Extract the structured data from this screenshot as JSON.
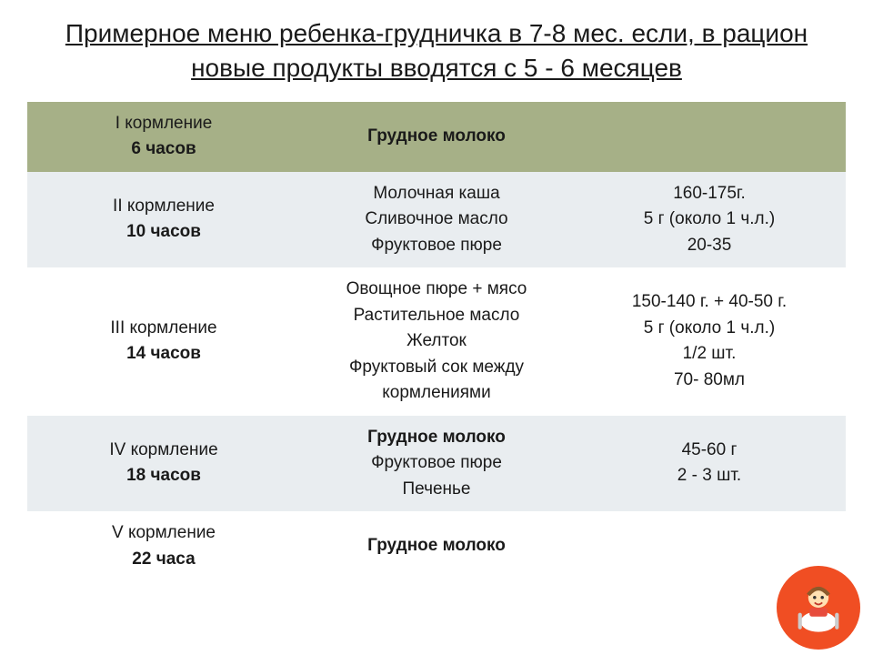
{
  "title": "Примерное меню ребенка-грудничка в 7-8 мес. если, в рацион   новые продукты вводятся с 5 - 6 месяцев",
  "columns": {
    "time_width": 300,
    "food_width": 300,
    "qty_width": 300
  },
  "colors": {
    "header_bg": "#a6b087",
    "alt_bg": "#e9edf0",
    "plain_bg": "#ffffff",
    "text": "#1a1a1a",
    "badge_bg": "#f04e23"
  },
  "rows": [
    {
      "style": "hdr",
      "time_main": "I кормление",
      "time_sub": "6 часов",
      "food": [
        "Грудное молоко"
      ],
      "food_bold": [
        true
      ],
      "qty": []
    },
    {
      "style": "alt",
      "time_main": "II кормление",
      "time_sub": "10 часов",
      "food": [
        "Молочная каша",
        "Сливочное масло",
        "Фруктовое пюре"
      ],
      "food_bold": [
        false,
        false,
        false
      ],
      "qty": [
        "160-175г.",
        "5 г (около 1 ч.л.)",
        "20-35"
      ]
    },
    {
      "style": "plain",
      "time_main": "III кормление",
      "time_sub": "14 часов",
      "food": [
        "Овощное пюре + мясо",
        "Растительное масло",
        "Желток",
        "Фруктовый сок между кормлениями"
      ],
      "food_bold": [
        false,
        false,
        false,
        false
      ],
      "qty": [
        "150-140 г. + 40-50 г.",
        "5 г (около 1 ч.л.)",
        "1/2 шт.",
        "70- 80мл"
      ]
    },
    {
      "style": "alt",
      "time_main": "IV кормление",
      "time_sub": "18 часов",
      "food": [
        "Грудное молоко",
        "Фруктовое пюре",
        "Печенье"
      ],
      "food_bold": [
        true,
        false,
        false
      ],
      "qty": [
        "",
        "45-60 г",
        "2 - 3 шт."
      ]
    },
    {
      "style": "plain",
      "time_main": "V кормление",
      "time_sub": "22 часа",
      "food": [
        "Грудное молоко"
      ],
      "food_bold": [
        true
      ],
      "qty": []
    }
  ],
  "fonts": {
    "title_size": 28,
    "cell_size": 19
  }
}
